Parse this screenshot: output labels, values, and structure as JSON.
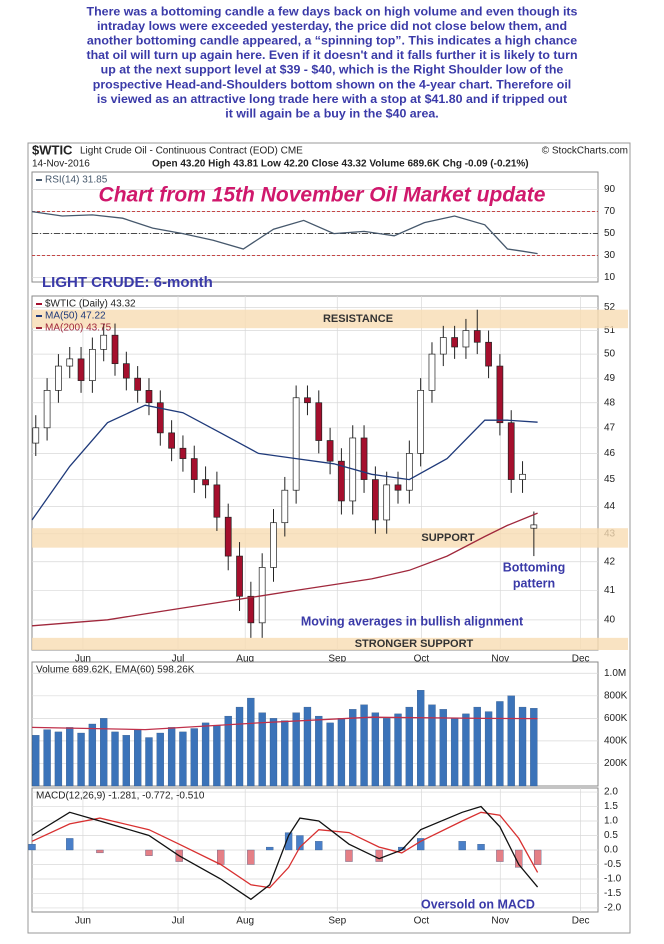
{
  "paragraph": [
    "There was a bottoming candle a few days back on high volume and even though its",
    "intraday lows were exceeded yesterday, the price did not close below them, and",
    "another bottoming candle appeared, a “spinning top”. This indicates a high chance",
    "that oil will turn up again here. Even if it doesn't and it falls further it is likely to turn",
    "up at the next support level at $39 - $40, which is the Right Shoulder low of the",
    "prospective Head-and-Shoulders bottom shown on the 4-year chart. Therefore oil",
    "is viewed as an attractive long trade here with a stop at $41.80 and if tripped out",
    "it will again be a buy in the $40 area."
  ],
  "header": {
    "symbol": "$WTIC",
    "name": "Light Crude Oil - Continuous Contract (EOD) CME",
    "credit": "© StockCharts.com",
    "date": "14-Nov-2016",
    "quote": "Open 43.20  High 43.81  Low 42.20  Close 43.32  Volume 689.6K  Chg -0.09 (-0.21%)"
  },
  "chart_data": [
    {
      "type": "line",
      "title": "Chart from 15th November Oil Market update",
      "xlim": [
        0,
        150
      ],
      "ylim": [
        6,
        106
      ],
      "yticks": [
        10,
        30,
        50,
        70,
        90
      ],
      "grid": true,
      "reference_lines": [
        30,
        50,
        70
      ],
      "series": [
        {
          "name": "RSI(14) 31.85",
          "color": "#46586c",
          "x": [
            0,
            8,
            16,
            24,
            32,
            40,
            48,
            56,
            64,
            72,
            80,
            88,
            96,
            104,
            112,
            120,
            126,
            130,
            134
          ],
          "values": [
            70,
            66,
            67,
            64,
            55,
            50,
            44,
            36,
            54,
            62,
            50,
            52,
            48,
            60,
            66,
            58,
            36,
            34,
            31.85
          ]
        }
      ]
    },
    {
      "type": "candlestick",
      "title": "LIGHT CRUDE: 6-month",
      "log_scale": true,
      "grid": true,
      "xlim": [
        0,
        150
      ],
      "ylim": [
        39.0,
        52.5
      ],
      "yticks": [
        40,
        41,
        42,
        43,
        44,
        45,
        46,
        47,
        48,
        49,
        50,
        51,
        52
      ],
      "xticks": [
        {
          "value": 13.5,
          "label": "Jun"
        },
        {
          "value": 38.7,
          "label": "Jul"
        },
        {
          "value": 56.5,
          "label": "Aug"
        },
        {
          "value": 80.9,
          "label": "Sep"
        },
        {
          "value": 103.2,
          "label": "Oct"
        },
        {
          "value": 124.1,
          "label": "Nov"
        },
        {
          "value": 145.4,
          "label": "Dec"
        }
      ],
      "bands": [
        {
          "label": "RESISTANCE",
          "range": [
            51.1,
            51.9
          ]
        },
        {
          "label": "SUPPORT",
          "range": [
            42.5,
            43.2
          ]
        },
        {
          "label": "STRONGER SUPPORT",
          "range": [
            39.0,
            39.4
          ]
        }
      ],
      "annotations": [
        "Bottoming",
        "pattern",
        "Moving averages in bullish alignment"
      ],
      "series": [
        {
          "name": "$WTIC (Daily) 43.32",
          "type": "candlestick",
          "color": "#a50f2d",
          "x": [
            1,
            4,
            7,
            10,
            13,
            16,
            19,
            22,
            25,
            28,
            31,
            34,
            37,
            40,
            43,
            46,
            49,
            52,
            55,
            58,
            61,
            64,
            67,
            70,
            73,
            76,
            79,
            82,
            85,
            88,
            91,
            94,
            97,
            100,
            103,
            106,
            109,
            112,
            115,
            118,
            121,
            124,
            127,
            130,
            133
          ],
          "open": [
            46.4,
            47.0,
            48.5,
            49.5,
            49.8,
            48.9,
            50.2,
            50.8,
            49.6,
            49.0,
            48.5,
            48.0,
            46.8,
            46.2,
            45.8,
            45.0,
            44.8,
            43.6,
            42.2,
            40.8,
            39.9,
            41.8,
            43.4,
            44.6,
            48.2,
            48.0,
            46.5,
            45.7,
            44.2,
            46.6,
            45.0,
            43.5,
            44.8,
            44.6,
            46.0,
            48.5,
            50.0,
            50.7,
            50.3,
            51.0,
            50.5,
            49.5,
            47.2,
            45.0,
            43.2
          ],
          "high": [
            47.5,
            49.0,
            50.0,
            50.3,
            50.3,
            50.7,
            51.3,
            51.3,
            50.1,
            49.5,
            49.0,
            48.5,
            47.3,
            46.7,
            46.3,
            45.5,
            45.3,
            44.1,
            42.7,
            41.3,
            42.3,
            43.9,
            45.1,
            48.7,
            48.7,
            48.5,
            47.0,
            46.2,
            47.1,
            47.1,
            45.5,
            45.3,
            45.3,
            46.5,
            49.0,
            50.5,
            51.2,
            51.2,
            51.5,
            51.9,
            51.0,
            50.0,
            47.7,
            45.7,
            43.81
          ],
          "low": [
            45.9,
            46.5,
            48.0,
            49.0,
            48.4,
            48.4,
            49.7,
            49.1,
            48.5,
            48.0,
            47.5,
            46.3,
            45.7,
            45.3,
            44.5,
            44.3,
            43.1,
            41.7,
            40.3,
            39.4,
            39.4,
            41.3,
            42.9,
            44.1,
            47.5,
            46.0,
            45.2,
            43.7,
            43.7,
            44.5,
            43.0,
            43.0,
            44.1,
            44.1,
            45.5,
            48.0,
            49.5,
            49.8,
            49.8,
            50.0,
            49.0,
            46.7,
            44.5,
            44.5,
            42.2
          ],
          "close": [
            47.0,
            48.5,
            49.5,
            49.8,
            48.9,
            50.2,
            50.8,
            49.6,
            49.0,
            48.5,
            48.0,
            46.8,
            46.2,
            45.8,
            45.0,
            44.8,
            43.6,
            42.2,
            40.8,
            39.9,
            41.8,
            43.4,
            44.6,
            48.2,
            48.0,
            46.5,
            45.7,
            44.2,
            46.6,
            45.0,
            43.5,
            44.8,
            44.6,
            46.0,
            48.5,
            50.0,
            50.7,
            50.3,
            51.0,
            50.5,
            49.5,
            47.2,
            45.0,
            45.2,
            43.32
          ]
        },
        {
          "name": "MA(50) 47.22",
          "type": "line",
          "color": "#1f3a7a",
          "x": [
            0,
            10,
            20,
            30,
            40,
            50,
            60,
            70,
            80,
            90,
            100,
            110,
            120,
            126,
            134
          ],
          "values": [
            43.5,
            45.5,
            47.2,
            47.9,
            47.6,
            46.8,
            46.0,
            45.8,
            45.6,
            45.2,
            45.0,
            45.8,
            47.3,
            47.3,
            47.22
          ]
        },
        {
          "name": "MA(200) 43.75",
          "type": "line",
          "color": "#a0283c",
          "x": [
            0,
            10,
            20,
            30,
            40,
            50,
            60,
            70,
            80,
            90,
            100,
            110,
            120,
            126,
            134
          ],
          "values": [
            39.8,
            39.9,
            40.0,
            40.2,
            40.4,
            40.6,
            40.8,
            41.0,
            41.2,
            41.4,
            41.7,
            42.2,
            42.9,
            43.3,
            43.75
          ]
        }
      ]
    },
    {
      "type": "bar",
      "label": "Volume 689.62K, EMA(60) 598.26K",
      "grid": true,
      "xlim": [
        0,
        150
      ],
      "ylim": [
        0,
        1100000
      ],
      "yticks": [
        {
          "value": 200000,
          "label": "200K"
        },
        {
          "value": 400000,
          "label": "400K"
        },
        {
          "value": 600000,
          "label": "600K"
        },
        {
          "value": 800000,
          "label": "800K"
        },
        {
          "value": 1000000,
          "label": "1.0M"
        }
      ],
      "series": [
        {
          "type": "bar",
          "color": "#3b73b9",
          "x": [
            1,
            4,
            7,
            10,
            13,
            16,
            19,
            22,
            25,
            28,
            31,
            34,
            37,
            40,
            43,
            46,
            49,
            52,
            55,
            58,
            61,
            64,
            67,
            70,
            73,
            76,
            79,
            82,
            85,
            88,
            91,
            94,
            97,
            100,
            103,
            106,
            109,
            112,
            115,
            118,
            121,
            124,
            127,
            130,
            133
          ],
          "values": [
            450000,
            500000,
            480000,
            520000,
            470000,
            550000,
            600000,
            480000,
            450000,
            500000,
            430000,
            470000,
            520000,
            480000,
            510000,
            560000,
            540000,
            620000,
            700000,
            780000,
            650000,
            600000,
            580000,
            650000,
            700000,
            620000,
            560000,
            600000,
            680000,
            720000,
            650000,
            600000,
            640000,
            700000,
            850000,
            720000,
            680000,
            600000,
            640000,
            700000,
            660000,
            750000,
            800000,
            700000,
            689620
          ]
        },
        {
          "type": "line",
          "color": "#c0304a",
          "x": [
            0,
            30,
            60,
            90,
            120,
            134
          ],
          "values": [
            520000,
            500000,
            560000,
            610000,
            600000,
            598260
          ]
        }
      ]
    },
    {
      "type": "line",
      "label": "MACD(12,26,9) -1.281, -0.772, -0.510",
      "grid": true,
      "xlim": [
        0,
        150
      ],
      "ylim": [
        -2.14,
        2.14
      ],
      "yticks": [
        {
          "value": -2.0,
          "label": "-2.0"
        },
        -1.5,
        {
          "value": -1.0,
          "label": "-1.0"
        },
        -0.5,
        {
          "value": 0.0,
          "label": "0.0"
        },
        0.5,
        {
          "value": 1.0,
          "label": "1.0"
        },
        1.5,
        {
          "value": 2.0,
          "label": "2.0"
        }
      ],
      "xticks": [
        {
          "value": 13.5,
          "label": "Jun"
        },
        {
          "value": 38.7,
          "label": "Jul"
        },
        {
          "value": 56.5,
          "label": "Aug"
        },
        {
          "value": 80.9,
          "label": "Sep"
        },
        {
          "value": 103.2,
          "label": "Oct"
        },
        {
          "value": 124.1,
          "label": "Nov"
        },
        {
          "value": 145.4,
          "label": "Dec"
        }
      ],
      "annotations": [
        "Oversold on MACD"
      ],
      "series": [
        {
          "type": "bar",
          "color": "#4a7fc8",
          "negative_color": "#e57f86",
          "x": [
            0,
            10,
            18,
            31,
            39,
            50,
            58,
            63,
            68,
            71,
            76,
            84,
            92,
            98,
            103,
            114,
            119,
            124,
            129,
            134
          ],
          "values": [
            0.2,
            0.4,
            -0.1,
            -0.2,
            -0.4,
            -0.5,
            -0.5,
            0.1,
            0.6,
            0.5,
            0.3,
            -0.4,
            -0.4,
            0.1,
            0.4,
            0.3,
            0.2,
            -0.4,
            -0.6,
            -0.51
          ]
        },
        {
          "type": "line",
          "color": "#d83030",
          "x": [
            0,
            10,
            18,
            31,
            39,
            50,
            58,
            63,
            68,
            71,
            76,
            84,
            92,
            98,
            103,
            114,
            119,
            124,
            129,
            134
          ],
          "values": [
            0.3,
            0.9,
            1.1,
            0.7,
            0.2,
            -0.5,
            -1.2,
            -1.3,
            -0.6,
            0.1,
            0.7,
            0.6,
            0.1,
            -0.1,
            0.3,
            1.0,
            1.3,
            1.2,
            0.4,
            -0.772
          ]
        },
        {
          "type": "line",
          "color": "#111111",
          "x": [
            0,
            10,
            18,
            31,
            39,
            50,
            58,
            63,
            68,
            71,
            76,
            84,
            92,
            98,
            103,
            114,
            119,
            124,
            129,
            134
          ],
          "values": [
            0.5,
            1.3,
            1.0,
            0.5,
            -0.2,
            -1.0,
            -1.7,
            -1.2,
            0.5,
            1.1,
            1.0,
            0.2,
            -0.3,
            0.0,
            0.7,
            1.3,
            1.5,
            0.8,
            -0.5,
            -1.281
          ]
        }
      ]
    }
  ]
}
